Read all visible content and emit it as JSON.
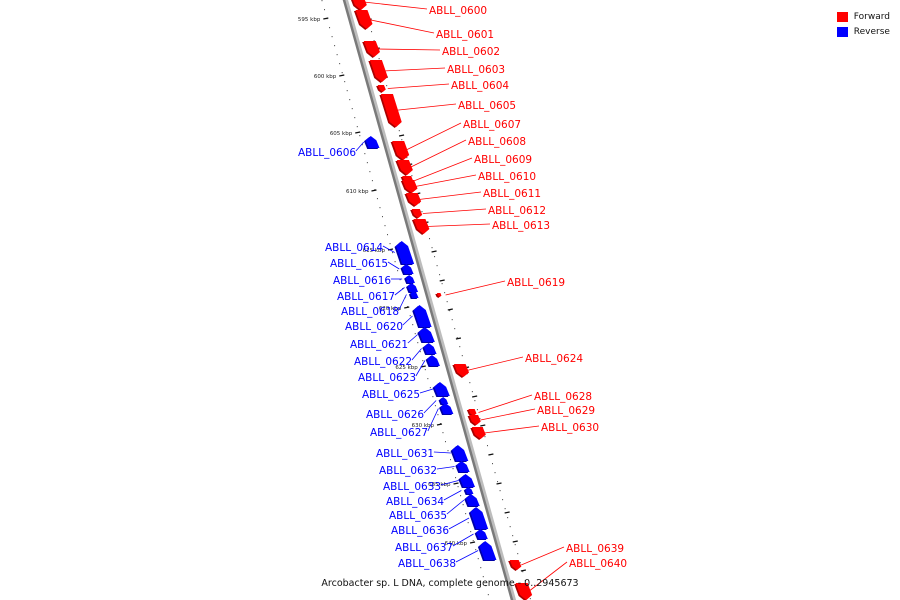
{
  "caption": "Arcobacter sp. L DNA, complete genome - 0..2945673",
  "legend": [
    {
      "label": "Forward",
      "color": "#ff0000"
    },
    {
      "label": "Reverse",
      "color": "#0000ff"
    }
  ],
  "colors": {
    "forward": "#ff0000",
    "reverse": "#0000ff",
    "backbone": "#7a7a7a"
  },
  "ticks": [
    "595 kbp",
    "600 kbp",
    "605 kbp",
    "610 kbp",
    "615 kbp",
    "620 kbp",
    "625 kbp",
    "630 kbp",
    "635 kbp",
    "640 kbp"
  ],
  "features": [
    {
      "name": "ABLL_0600",
      "strand": "forward"
    },
    {
      "name": "ABLL_0601",
      "strand": "forward"
    },
    {
      "name": "ABLL_0602",
      "strand": "forward"
    },
    {
      "name": "ABLL_0603",
      "strand": "forward"
    },
    {
      "name": "ABLL_0604",
      "strand": "forward"
    },
    {
      "name": "ABLL_0605",
      "strand": "forward"
    },
    {
      "name": "ABLL_0606",
      "strand": "reverse"
    },
    {
      "name": "ABLL_0607",
      "strand": "forward"
    },
    {
      "name": "ABLL_0608",
      "strand": "forward"
    },
    {
      "name": "ABLL_0609",
      "strand": "forward"
    },
    {
      "name": "ABLL_0610",
      "strand": "forward"
    },
    {
      "name": "ABLL_0611",
      "strand": "forward"
    },
    {
      "name": "ABLL_0612",
      "strand": "forward"
    },
    {
      "name": "ABLL_0613",
      "strand": "forward"
    },
    {
      "name": "ABLL_0614",
      "strand": "reverse"
    },
    {
      "name": "ABLL_0615",
      "strand": "reverse"
    },
    {
      "name": "ABLL_0616",
      "strand": "reverse"
    },
    {
      "name": "ABLL_0617",
      "strand": "reverse"
    },
    {
      "name": "ABLL_0618",
      "strand": "reverse"
    },
    {
      "name": "ABLL_0619",
      "strand": "forward"
    },
    {
      "name": "ABLL_0620",
      "strand": "reverse"
    },
    {
      "name": "ABLL_0621",
      "strand": "reverse"
    },
    {
      "name": "ABLL_0622",
      "strand": "reverse"
    },
    {
      "name": "ABLL_0623",
      "strand": "reverse"
    },
    {
      "name": "ABLL_0624",
      "strand": "forward"
    },
    {
      "name": "ABLL_0625",
      "strand": "reverse"
    },
    {
      "name": "ABLL_0626",
      "strand": "reverse"
    },
    {
      "name": "ABLL_0627",
      "strand": "reverse"
    },
    {
      "name": "ABLL_0628",
      "strand": "forward"
    },
    {
      "name": "ABLL_0629",
      "strand": "forward"
    },
    {
      "name": "ABLL_0630",
      "strand": "forward"
    },
    {
      "name": "ABLL_0631",
      "strand": "reverse"
    },
    {
      "name": "ABLL_0632",
      "strand": "reverse"
    },
    {
      "name": "ABLL_0633",
      "strand": "reverse"
    },
    {
      "name": "ABLL_0634",
      "strand": "reverse"
    },
    {
      "name": "ABLL_0635",
      "strand": "reverse"
    },
    {
      "name": "ABLL_0636",
      "strand": "reverse"
    },
    {
      "name": "ABLL_0637",
      "strand": "reverse"
    },
    {
      "name": "ABLL_0638",
      "strand": "reverse"
    },
    {
      "name": "ABLL_0639",
      "strand": "forward"
    },
    {
      "name": "ABLL_0640",
      "strand": "forward"
    }
  ]
}
